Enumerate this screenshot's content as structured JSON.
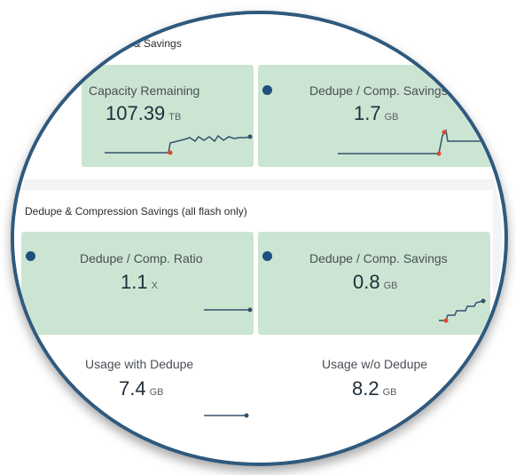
{
  "top_section": {
    "title": "t & Savings"
  },
  "bottom_section": {
    "title": "Dedupe & Compression Savings (all flash only)"
  },
  "tiles": {
    "capacity_remaining": {
      "label": "Capacity Remaining",
      "value": "107.39",
      "unit": "TB"
    },
    "dedupe_savings_top": {
      "label": "Dedupe / Comp. Savings",
      "value": "1.7",
      "unit": "GB"
    },
    "dedupe_ratio": {
      "label": "Dedupe / Comp. Ratio",
      "value": "1.1",
      "unit": "X"
    },
    "dedupe_savings": {
      "label": "Dedupe / Comp. Savings",
      "value": "0.8",
      "unit": "GB"
    },
    "usage_with_dedupe": {
      "label": "Usage with Dedupe",
      "value": "7.4",
      "unit": "GB"
    },
    "usage_without_dedupe": {
      "label": "Usage w/o Dedupe",
      "value": "8.2",
      "unit": "GB"
    }
  },
  "colors": {
    "tile_bg": "#cbe5d2",
    "accent_dot": "#21507f",
    "spark_line": "#34516d",
    "spark_marker": "#e0452b",
    "lens_border": "#2f5a7e"
  }
}
